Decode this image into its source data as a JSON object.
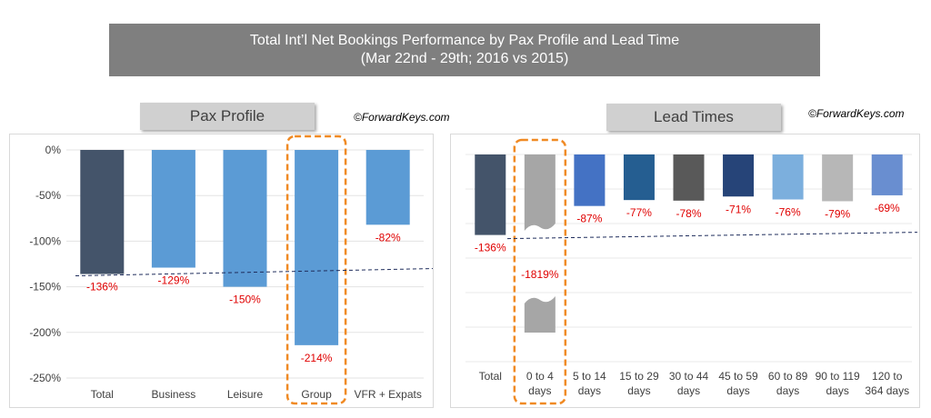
{
  "title": {
    "line1": "Total Int’l Net Bookings Performance by Pax Profile and Lead Time",
    "line2": "(Mar 22nd  - 29th; 2016 vs 2015)"
  },
  "colors": {
    "title_bg": "#7f7f7f",
    "highlight_box": "#f08a24",
    "value_label": "#e00000",
    "benchmark_line": "#1f2d5c",
    "dark_bar": "#44546a",
    "light_blue": "#5b9bd5",
    "gray": "#a6a6a6"
  },
  "chart_data": [
    {
      "type": "bar",
      "panel_title": "Pax Profile",
      "copyright": "©ForwardKeys.com",
      "categories": [
        "Total",
        "Business",
        "Leisure",
        "Group",
        "VFR + Expats"
      ],
      "values": [
        -136,
        -129,
        -150,
        -214,
        -82
      ],
      "value_labels": [
        "-136%",
        "-129%",
        "-150%",
        "-214%",
        "-82%"
      ],
      "bar_colors": [
        "#44546a",
        "#5b9bd5",
        "#5b9bd5",
        "#5b9bd5",
        "#5b9bd5"
      ],
      "y_ticks": [
        0,
        -50,
        -100,
        -150,
        -200,
        -250
      ],
      "y_tick_labels": [
        "0%",
        "-50%",
        "-100%",
        "-150%",
        "-200%",
        "-250%"
      ],
      "ylim": [
        -250,
        0
      ],
      "highlighted_category": "Group",
      "benchmark": -136,
      "grid": true
    },
    {
      "type": "bar",
      "panel_title": "Lead Times",
      "copyright": "©ForwardKeys.com",
      "categories": [
        "Total",
        "0 to 4 days",
        "5 to 14 days",
        "15 to 29 days",
        "30 to 44 days",
        "45 to 59 days",
        "60 to 89 days",
        "90 to 119 days",
        "120 to 364 days"
      ],
      "category_lines": [
        [
          "Total"
        ],
        [
          "0 to 4",
          "days"
        ],
        [
          "5 to 14",
          "days"
        ],
        [
          "15 to 29",
          "days"
        ],
        [
          "30 to 44",
          "days"
        ],
        [
          "45 to 59",
          "days"
        ],
        [
          "60 to 89",
          "days"
        ],
        [
          "90 to 119",
          "days"
        ],
        [
          "120 to",
          "364 days"
        ]
      ],
      "values": [
        -136,
        -1819,
        -87,
        -77,
        -78,
        -71,
        -76,
        -79,
        -69
      ],
      "value_labels": [
        "-136%",
        "-1819%",
        "-87%",
        "-77%",
        "-78%",
        "-71%",
        "-76%",
        "-79%",
        "-69%"
      ],
      "bar_colors": [
        "#44546a",
        "#a6a6a6",
        "#4472c4",
        "#255e91",
        "#595959",
        "#264478",
        "#7cafdd",
        "#b7b7b7",
        "#698ed0"
      ],
      "broken_axis_category": "0 to 4 days",
      "highlighted_category": "0 to 4 days",
      "benchmark": -136,
      "grid": true
    }
  ]
}
